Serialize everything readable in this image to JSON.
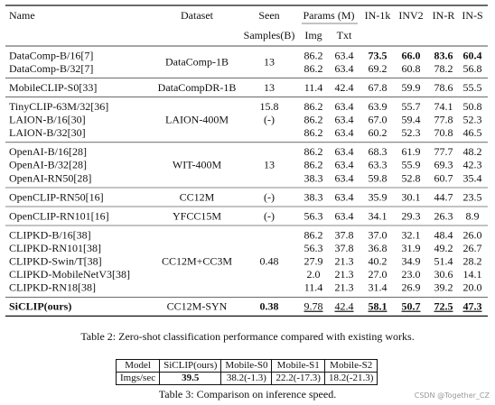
{
  "table2": {
    "header": {
      "name": "Name",
      "dataset": "Dataset",
      "seen": "Seen",
      "seen2": "Samples(B)",
      "params": "Params (M)",
      "img": "Img",
      "txt": "Txt",
      "in1k": "IN-1k",
      "inv2": "INV2",
      "inr": "IN-R",
      "ins": "IN-S"
    },
    "groups": [
      {
        "dataset": "DataComp-1B",
        "seen": "13",
        "rows": [
          {
            "name": "DataComp-B/16[7]",
            "img": "86.2",
            "txt": "63.4",
            "in1k": "73.5",
            "inv2": "66.0",
            "inr": "83.6",
            "ins": "60.4",
            "bold": [
              "in1k",
              "inv2",
              "inr",
              "ins"
            ]
          },
          {
            "name": "DataComp-B/32[7]",
            "img": "86.2",
            "txt": "63.4",
            "in1k": "69.2",
            "inv2": "60.8",
            "inr": "78.2",
            "ins": "56.8"
          }
        ]
      },
      {
        "dataset": "DataCompDR-1B",
        "seen": "13",
        "rows": [
          {
            "name": "MobileCLIP-S0[33]",
            "img": "11.4",
            "txt": "42.4",
            "in1k": "67.8",
            "inv2": "59.9",
            "inr": "78.6",
            "ins": "55.5"
          }
        ]
      },
      {
        "dataset": "LAION-400M",
        "rows": [
          {
            "name": "TinyCLIP-63M/32[36]",
            "seen": "15.8",
            "img": "86.2",
            "txt": "63.4",
            "in1k": "63.9",
            "inv2": "55.7",
            "inr": "74.1",
            "ins": "50.8"
          },
          {
            "name": "LAION-B/16[30]",
            "seen": "(-)",
            "img": "86.2",
            "txt": "63.4",
            "in1k": "67.0",
            "inv2": "59.4",
            "inr": "77.8",
            "ins": "52.3"
          },
          {
            "name": "LAION-B/32[30]",
            "img": "86.2",
            "txt": "63.4",
            "in1k": "60.2",
            "inv2": "52.3",
            "inr": "70.8",
            "ins": "46.5"
          }
        ]
      },
      {
        "dataset": "WIT-400M",
        "seen": "13",
        "rows": [
          {
            "name": "OpenAI-B/16[28]",
            "img": "86.2",
            "txt": "63.4",
            "in1k": "68.3",
            "inv2": "61.9",
            "inr": "77.7",
            "ins": "48.2"
          },
          {
            "name": "OpenAI-B/32[28]",
            "img": "86.2",
            "txt": "63.4",
            "in1k": "63.3",
            "inv2": "55.9",
            "inr": "69.3",
            "ins": "42.3"
          },
          {
            "name": "OpenAI-RN50[28]",
            "img": "38.3",
            "txt": "63.4",
            "in1k": "59.8",
            "inv2": "52.8",
            "inr": "60.7",
            "ins": "35.4"
          }
        ]
      },
      {
        "dataset": "CC12M",
        "seen": "(-)",
        "rows": [
          {
            "name": "OpenCLIP-RN50[16]",
            "img": "38.3",
            "txt": "63.4",
            "in1k": "35.9",
            "inv2": "30.1",
            "inr": "44.7",
            "ins": "23.5"
          }
        ]
      },
      {
        "dataset": "YFCC15M",
        "seen": "(-)",
        "rows": [
          {
            "name": "OpenCLIP-RN101[16]",
            "img": "56.3",
            "txt": "63.4",
            "in1k": "34.1",
            "inv2": "29.3",
            "inr": "26.3",
            "ins": "8.9"
          }
        ]
      },
      {
        "dataset": "CC12M+CC3M",
        "seen": "0.48",
        "rows": [
          {
            "name": "CLIPKD-B/16[38]",
            "img": "86.2",
            "txt": "37.8",
            "in1k": "37.0",
            "inv2": "32.1",
            "inr": "48.4",
            "ins": "26.0"
          },
          {
            "name": "CLIPKD-RN101[38]",
            "img": "56.3",
            "txt": "37.8",
            "in1k": "36.8",
            "inv2": "31.9",
            "inr": "49.2",
            "ins": "26.7"
          },
          {
            "name": "CLIPKD-Swin/T[38]",
            "img": "27.9",
            "txt": "21.3",
            "in1k": "40.2",
            "inv2": "34.9",
            "inr": "51.4",
            "ins": "28.2"
          },
          {
            "name": "CLIPKD-MobileNetV3[38]",
            "img": "2.0",
            "txt": "21.3",
            "in1k": "27.0",
            "inv2": "23.0",
            "inr": "30.6",
            "ins": "14.1"
          },
          {
            "name": "CLIPKD-RN18[38]",
            "img": "11.4",
            "txt": "21.3",
            "in1k": "31.4",
            "inv2": "26.9",
            "inr": "39.2",
            "ins": "20.0"
          }
        ]
      },
      {
        "dataset": "CC12M-SYN",
        "seen": "0.38",
        "group_bold": [
          "seen"
        ],
        "rows": [
          {
            "name": "SiCLIP(ours)",
            "img": "9.78",
            "txt": "42.4",
            "in1k": "58.1",
            "inv2": "50.7",
            "inr": "72.5",
            "ins": "47.3",
            "bold": [
              "name",
              "in1k",
              "inv2",
              "inr",
              "ins"
            ],
            "underline": [
              "img",
              "txt",
              "in1k",
              "inv2",
              "inr",
              "ins"
            ]
          }
        ]
      }
    ],
    "caption": "Table 2: Zero-shot classification performance compared with existing works."
  },
  "table3": {
    "header": [
      "Model",
      "SiCLIP(ours)",
      "Mobile-S0",
      "Mobile-S1",
      "Mobile-S2"
    ],
    "row": [
      "Imgs/sec",
      "39.5",
      "38.2(-1.3)",
      "22.2(-17.3)",
      "18.2(-21.3)"
    ],
    "caption": "Table 3: Comparison on inference speed."
  },
  "watermark": "CSDN @Together_CZ"
}
